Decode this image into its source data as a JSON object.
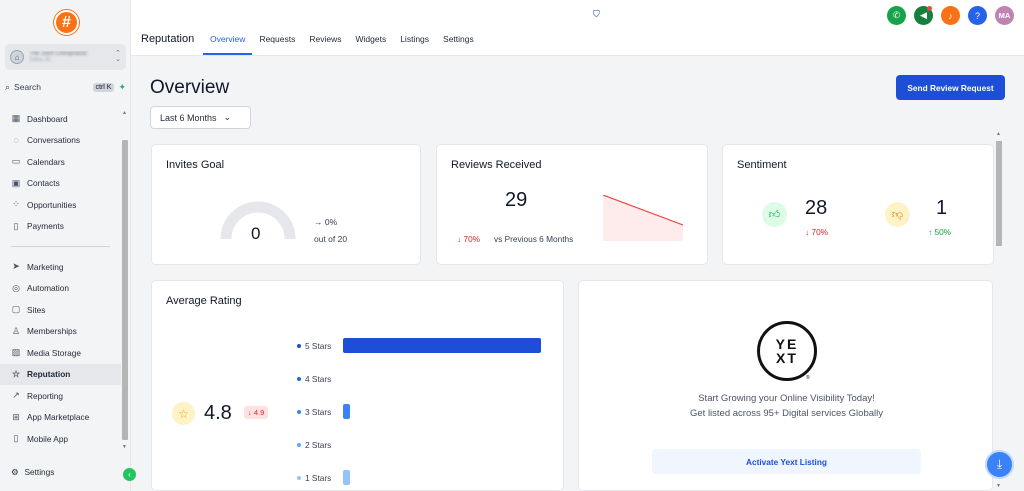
{
  "account": {
    "name": "The Joint Chiropractic",
    "location": "Dallas, AL"
  },
  "search": {
    "label": "Search",
    "shortcut": "ctrl K"
  },
  "nav": {
    "items_top": [
      {
        "label": "Dashboard",
        "icon": "grid-icon"
      },
      {
        "label": "Conversations",
        "icon": "chat-icon"
      },
      {
        "label": "Calendars",
        "icon": "calendar-icon"
      },
      {
        "label": "Contacts",
        "icon": "contacts-icon"
      },
      {
        "label": "Opportunities",
        "icon": "opportunities-icon"
      },
      {
        "label": "Payments",
        "icon": "payments-icon"
      }
    ],
    "items_bottom": [
      {
        "label": "Marketing",
        "icon": "send-icon"
      },
      {
        "label": "Automation",
        "icon": "automation-icon"
      },
      {
        "label": "Sites",
        "icon": "sites-icon"
      },
      {
        "label": "Memberships",
        "icon": "memberships-icon"
      },
      {
        "label": "Media Storage",
        "icon": "image-icon"
      },
      {
        "label": "Reputation",
        "icon": "star-icon"
      },
      {
        "label": "Reporting",
        "icon": "trend-icon"
      },
      {
        "label": "App Marketplace",
        "icon": "apps-icon"
      },
      {
        "label": "Mobile App",
        "icon": "phone-icon"
      }
    ],
    "settings": "Settings"
  },
  "header": {
    "module": "Reputation",
    "tabs": [
      "Overview",
      "Requests",
      "Reviews",
      "Widgets",
      "Listings",
      "Settings"
    ],
    "active_tab": "Overview",
    "avatar_initials": "MA",
    "help": "?"
  },
  "main": {
    "title": "Overview",
    "range": "Last 6 Months",
    "send_button": "Send Review Request"
  },
  "invites_goal": {
    "title": "Invites Goal",
    "value": "0",
    "percent": "→ 0%",
    "out_of": "out of 20",
    "progress": 0
  },
  "reviews_received": {
    "title": "Reviews Received",
    "value": "29",
    "change": "↓ 70%",
    "comparison": "vs Previous 6 Months"
  },
  "sentiment": {
    "title": "Sentiment",
    "positive": "28",
    "positive_change": "↓ 70%",
    "negative": "1",
    "negative_change": "↑ 50%"
  },
  "average_rating": {
    "title": "Average Rating",
    "value": "4.8",
    "change": "↓ 4.9",
    "rows": [
      {
        "label": "5 Stars",
        "fraction": 1.0,
        "color": "#1d4ed8",
        "dot": "#1d4ed8"
      },
      {
        "label": "4 Stars",
        "fraction": 0.0,
        "color": "#2563eb",
        "dot": "#2563eb"
      },
      {
        "label": "3 Stars",
        "fraction": 0.035,
        "color": "#3b82f6",
        "dot": "#3b82f6"
      },
      {
        "label": "2 Stars",
        "fraction": 0.0,
        "color": "#60a5fa",
        "dot": "#60a5fa"
      },
      {
        "label": "1 Stars",
        "fraction": 0.035,
        "color": "#93c5fd",
        "dot": "#93c5fd"
      }
    ]
  },
  "yext": {
    "logo_top": "YE",
    "logo_bottom": "XT",
    "registered": "®",
    "line1": "Start Growing your Online Visibility Today!",
    "line2": "Get listed across 95+ Digital services Globally",
    "button": "Activate Yext Listing"
  }
}
